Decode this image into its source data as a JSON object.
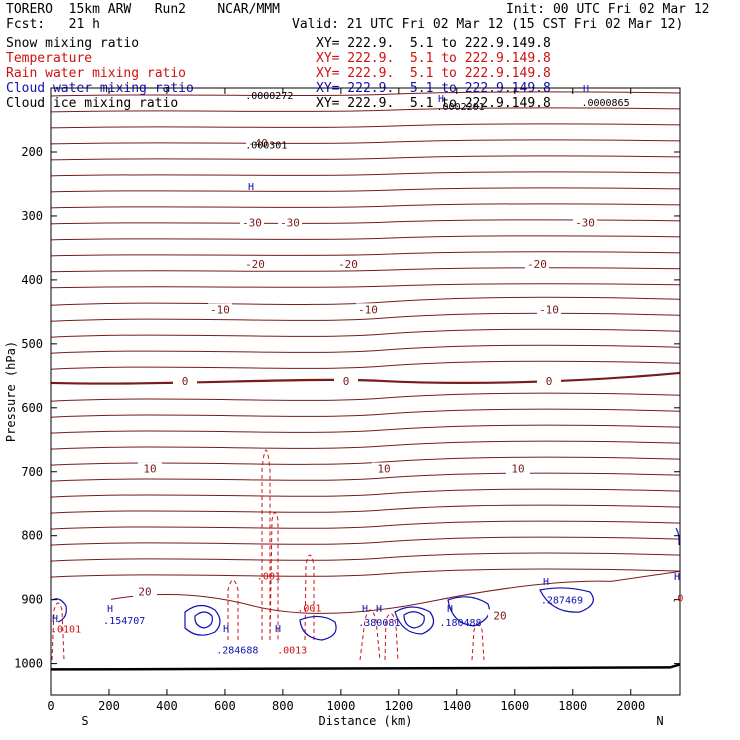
{
  "header": {
    "model": "TORERO  15km ARW   Run2    NCAR/MMM",
    "init": "Init: 00 UTC Fri 02 Mar 12",
    "fcst": "Fcst:   21 h",
    "valid": "Valid: 21 UTC Fri 02 Mar 12 (15 CST Fri 02 Mar 12)"
  },
  "legend": [
    {
      "name": "Snow mixing ratio",
      "xy": "XY= 222.9.  5.1 to 222.9.149.8",
      "color": "#000000"
    },
    {
      "name": "Temperature",
      "xy": "XY= 222.9.  5.1 to 222.9.149.8",
      "color": "#d01010"
    },
    {
      "name": "Rain water mixing ratio",
      "xy": "XY= 222.9.  5.1 to 222.9.149.8",
      "color": "#d01010"
    },
    {
      "name": "Cloud water mixing ratio",
      "xy": "XY= 222.9.  5.1 to 222.9.149.8",
      "color": "#1010b0"
    },
    {
      "name": "Cloud ice mixing ratio",
      "xy": "XY= 222.9.  5.1 to 222.9.149.8",
      "color": "#000000"
    }
  ],
  "chart_data": {
    "type": "cross-section contour",
    "xlabel": "Distance (km)",
    "ylabel": "Pressure (hPa)",
    "xlim": [
      0,
      2170
    ],
    "ylim": [
      1050,
      100
    ],
    "x_ticks": [
      0,
      200,
      400,
      600,
      800,
      1000,
      1200,
      1400,
      1600,
      1800,
      2000
    ],
    "y_ticks": [
      200,
      300,
      400,
      500,
      600,
      700,
      800,
      900,
      1000
    ],
    "x_end_labels": {
      "left": "S",
      "right": "N"
    },
    "temperature_contours": [
      {
        "label": "-40",
        "p": 186
      },
      {
        "label": "-30",
        "p": 310
      },
      {
        "label": "-20",
        "p": 375
      },
      {
        "label": "-10",
        "p": 446
      },
      {
        "label": "0",
        "p": 558
      },
      {
        "label": "10",
        "p": 695
      },
      {
        "label": "20",
        "p": 887
      }
    ],
    "annotations": [
      {
        "text": ".0000272",
        "x": 670,
        "p": 111
      },
      {
        "text": ".0002201",
        "x": 1330,
        "p": 128
      },
      {
        "text": ".0000865",
        "x": 1830,
        "p": 122
      },
      {
        "text": ".000301",
        "x": 670,
        "p": 188
      },
      {
        "text": ".001",
        "x": 710,
        "p": 862
      },
      {
        "text": ".001",
        "x": 850,
        "p": 912
      },
      {
        "text": ".0013",
        "x": 780,
        "p": 978
      },
      {
        "text": ".154707",
        "x": 180,
        "p": 932
      },
      {
        "text": ".284688",
        "x": 570,
        "p": 978
      },
      {
        "text": ".380081",
        "x": 1060,
        "p": 935
      },
      {
        "text": ".180488",
        "x": 1340,
        "p": 935
      },
      {
        "text": ".287469",
        "x": 1690,
        "p": 900
      },
      {
        "text": ".0101",
        "x": 0,
        "p": 945
      },
      {
        "text": ".0",
        "x": 2140,
        "p": 897
      }
    ],
    "surface_p": 1006
  }
}
